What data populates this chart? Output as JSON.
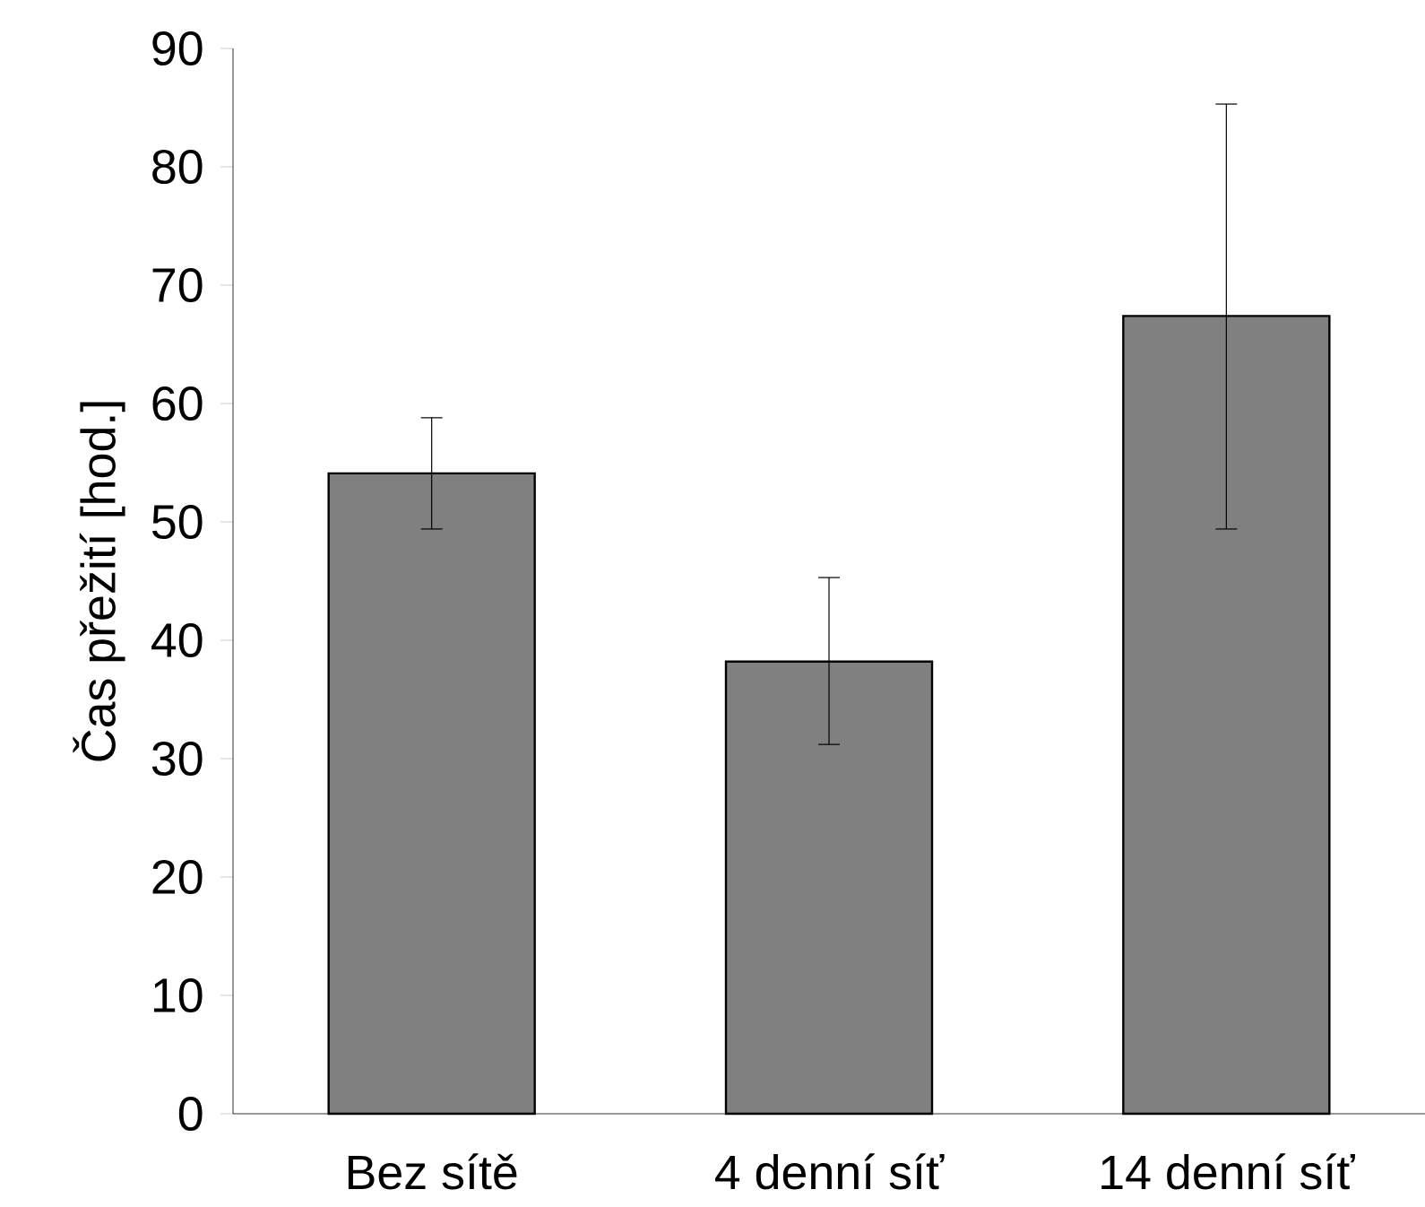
{
  "chart_data": {
    "type": "bar",
    "ylabel": "Čas přežití [hod.]",
    "categories": [
      "Bez sítě",
      "4 denní síť",
      "14 denní síť"
    ],
    "values": [
      54.1,
      38.2,
      67.4
    ],
    "errors": [
      [
        49.4,
        58.8
      ],
      [
        31.2,
        45.3
      ],
      [
        49.4,
        85.3
      ]
    ],
    "color": "#808080",
    "ylim": [
      0,
      90
    ],
    "yticks": [
      0,
      10,
      20,
      30,
      40,
      50,
      60,
      70,
      80,
      90
    ]
  }
}
